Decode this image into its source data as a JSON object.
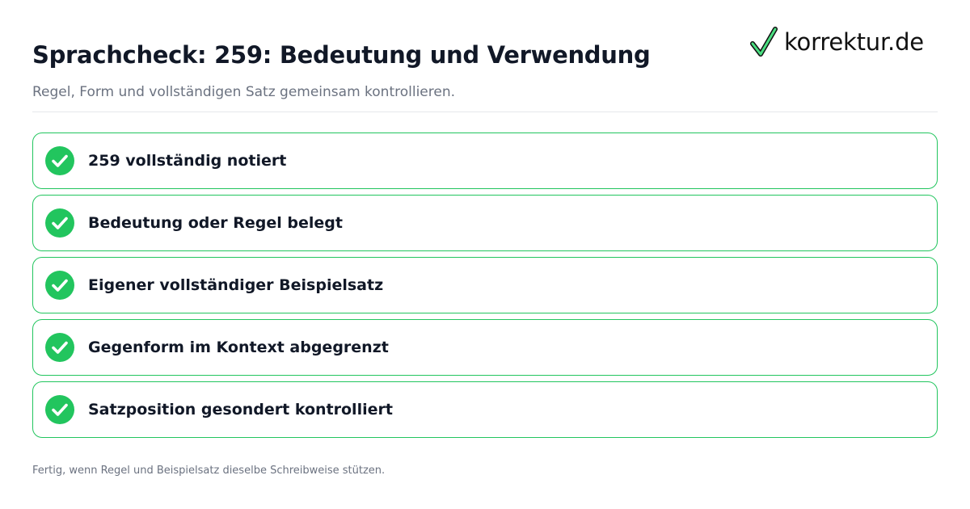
{
  "header": {
    "title": "Sprachcheck: 259: Bedeutung und Verwendung",
    "subtitle": "Regel, Form und vollständigen Satz gemeinsam kontrollieren."
  },
  "logo": {
    "text": "korrektur.de",
    "icon": "checkmark-icon",
    "accent": "#22c55e"
  },
  "checklist": {
    "items": [
      {
        "label": "259 vollständig notiert",
        "checked": true
      },
      {
        "label": "Bedeutung oder Regel belegt",
        "checked": true
      },
      {
        "label": "Eigener vollständiger Beispielsatz",
        "checked": true
      },
      {
        "label": "Gegenform im Kontext abgegrenzt",
        "checked": true
      },
      {
        "label": "Satzposition gesondert kontrolliert",
        "checked": true
      }
    ],
    "check_color": "#22c55e",
    "border_color": "#22c55e"
  },
  "footer": {
    "text": "Fertig, wenn Regel und Beispielsatz dieselbe Schreibweise stützen."
  }
}
